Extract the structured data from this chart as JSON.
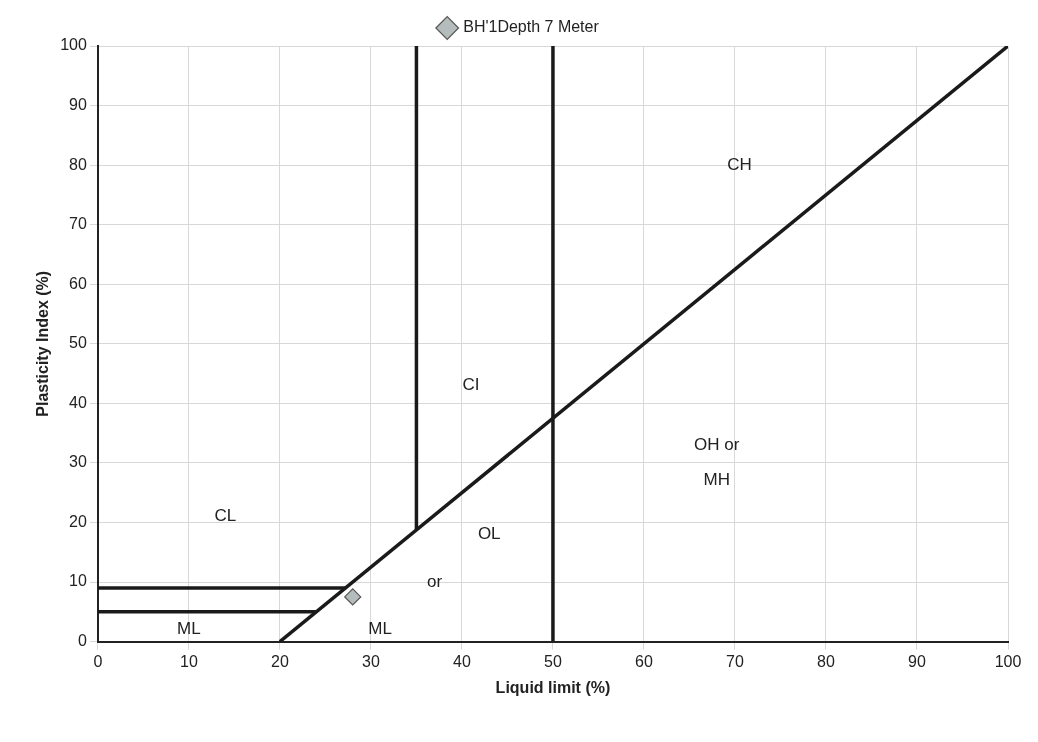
{
  "chart_data": {
    "type": "scatter",
    "xlabel": "Liquid limit (%)",
    "ylabel": "Plasticity Index (%)",
    "xlim": [
      0,
      100
    ],
    "xticks": [
      0,
      10,
      20,
      30,
      40,
      50,
      60,
      70,
      80,
      90,
      100
    ],
    "ylim": [
      0,
      100
    ],
    "yticks": [
      0,
      10,
      20,
      30,
      40,
      50,
      60,
      70,
      80,
      90,
      100
    ],
    "grid": true,
    "legend": "top",
    "series": [
      {
        "type": "line",
        "color": "#1a1a1a",
        "marker": "none",
        "x": [
          20,
          100
        ],
        "values": [
          0,
          100
        ]
      },
      {
        "type": "line",
        "color": "#1a1a1a",
        "marker": "none",
        "x": [
          35,
          35
        ],
        "values": [
          18.8,
          100
        ]
      },
      {
        "type": "line",
        "color": "#1a1a1a",
        "marker": "none",
        "x": [
          50,
          50
        ],
        "values": [
          0,
          100
        ]
      },
      {
        "type": "line",
        "color": "#1a1a1a",
        "marker": "none",
        "x": [
          0,
          27.2
        ],
        "values": [
          9,
          9
        ]
      },
      {
        "type": "line",
        "color": "#1a1a1a",
        "marker": "none",
        "x": [
          0,
          24
        ],
        "values": [
          5,
          5
        ]
      },
      {
        "name": "BH'1Depth 7 Meter",
        "color": "#b4bcbc",
        "marker": "diamond",
        "x": [
          28
        ],
        "values": [
          7.5
        ]
      }
    ],
    "annotations": [
      "CH",
      "CI",
      "OH or",
      "MH",
      "CL",
      "OL",
      "or",
      "ML",
      "ML"
    ]
  }
}
